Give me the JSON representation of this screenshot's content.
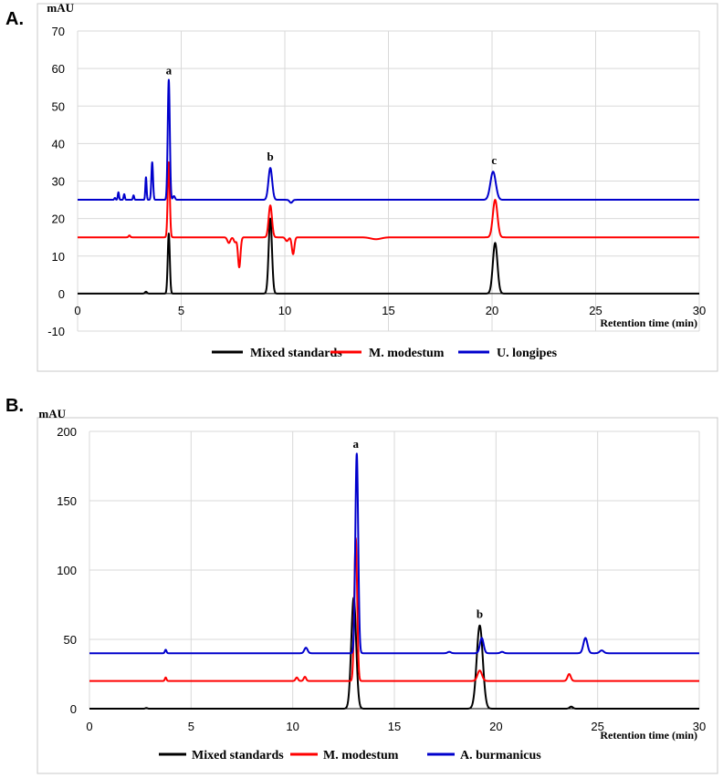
{
  "chart_data": [
    {
      "type": "line",
      "panel_label": "A.",
      "ylabel": "mAU",
      "xlabel": "Retention time (min)",
      "xlim": [
        0,
        30
      ],
      "ylim": [
        -10,
        70
      ],
      "xticks": [
        0,
        5,
        10,
        15,
        20,
        25,
        30
      ],
      "yticks": [
        -10,
        0,
        10,
        20,
        30,
        40,
        50,
        60,
        70
      ],
      "grid": true,
      "legend_position": "bottom",
      "baseline": 0,
      "peak_labels": [
        {
          "label": "a",
          "x": 4.4,
          "y": 58
        },
        {
          "label": "b",
          "x": 9.3,
          "y": 35
        },
        {
          "label": "c",
          "x": 20.1,
          "y": 34
        }
      ],
      "series": [
        {
          "name": "Mixed standards",
          "color": "#000000",
          "baseline": 0,
          "peaks": [
            [
              3.3,
              0.5,
              0.05
            ],
            [
              4.4,
              16,
              0.05
            ],
            [
              9.3,
              20,
              0.08
            ],
            [
              20.15,
              13.5,
              0.11
            ]
          ]
        },
        {
          "name": "M. modestum",
          "color": "#ff0000",
          "baseline": 15,
          "peaks": [
            [
              2.5,
              0.5,
              0.04
            ],
            [
              4.4,
              20,
              0.05
            ],
            [
              7.3,
              -1.5,
              0.07
            ],
            [
              7.6,
              -1.3,
              0.06
            ],
            [
              7.8,
              -8,
              0.06
            ],
            [
              9.3,
              8.5,
              0.08
            ],
            [
              10.1,
              -1,
              0.07
            ],
            [
              10.4,
              -4.5,
              0.06
            ],
            [
              14.4,
              -0.5,
              0.25
            ],
            [
              20.15,
              10,
              0.11
            ]
          ]
        },
        {
          "name": "U. longipes",
          "color": "#0000cc",
          "baseline": 25,
          "peaks": [
            [
              1.8,
              0.5,
              0.03
            ],
            [
              1.97,
              2,
              0.03
            ],
            [
              2.25,
              1.5,
              0.03
            ],
            [
              2.7,
              1.2,
              0.03
            ],
            [
              3.3,
              6,
              0.03
            ],
            [
              3.6,
              10,
              0.04
            ],
            [
              4.4,
              32,
              0.05
            ],
            [
              4.65,
              1,
              0.05
            ],
            [
              9.3,
              8.5,
              0.09
            ],
            [
              10.3,
              -0.8,
              0.07
            ],
            [
              20.05,
              7.5,
              0.13
            ]
          ]
        }
      ]
    },
    {
      "type": "line",
      "panel_label": "B.",
      "ylabel": "mAU",
      "xlabel": "Retention time (min)",
      "xlim": [
        0,
        30
      ],
      "ylim": [
        0,
        200
      ],
      "xticks": [
        0,
        5,
        10,
        15,
        20,
        25,
        30
      ],
      "yticks": [
        0,
        50,
        100,
        150,
        200
      ],
      "grid": true,
      "legend_position": "bottom",
      "baseline": 0,
      "peak_labels": [
        {
          "label": "a",
          "x": 13.1,
          "y": 187
        },
        {
          "label": "b",
          "x": 19.2,
          "y": 64
        }
      ],
      "series": [
        {
          "name": "Mixed standards",
          "color": "#000000",
          "baseline": 0,
          "peaks": [
            [
              2.8,
              0.5,
              0.05
            ],
            [
              13.0,
              80,
              0.12
            ],
            [
              19.2,
              60,
              0.15
            ],
            [
              23.7,
              1.5,
              0.08
            ]
          ]
        },
        {
          "name": "M. modestum",
          "color": "#ff0000",
          "baseline": 20,
          "peaks": [
            [
              3.75,
              2.5,
              0.04
            ],
            [
              10.2,
              2.5,
              0.06
            ],
            [
              10.6,
              3,
              0.06
            ],
            [
              13.1,
              103,
              0.07
            ],
            [
              19.2,
              7.5,
              0.11
            ],
            [
              23.6,
              5,
              0.08
            ]
          ]
        },
        {
          "name": "A. burmanicus",
          "color": "#0000cc",
          "baseline": 40,
          "peaks": [
            [
              3.75,
              2.5,
              0.04
            ],
            [
              10.65,
              4,
              0.08
            ],
            [
              13.15,
              144,
              0.07
            ],
            [
              17.7,
              1,
              0.08
            ],
            [
              19.3,
              11,
              0.09
            ],
            [
              20.3,
              1,
              0.08
            ],
            [
              24.4,
              11,
              0.1
            ],
            [
              25.2,
              2,
              0.1
            ]
          ]
        }
      ]
    }
  ]
}
